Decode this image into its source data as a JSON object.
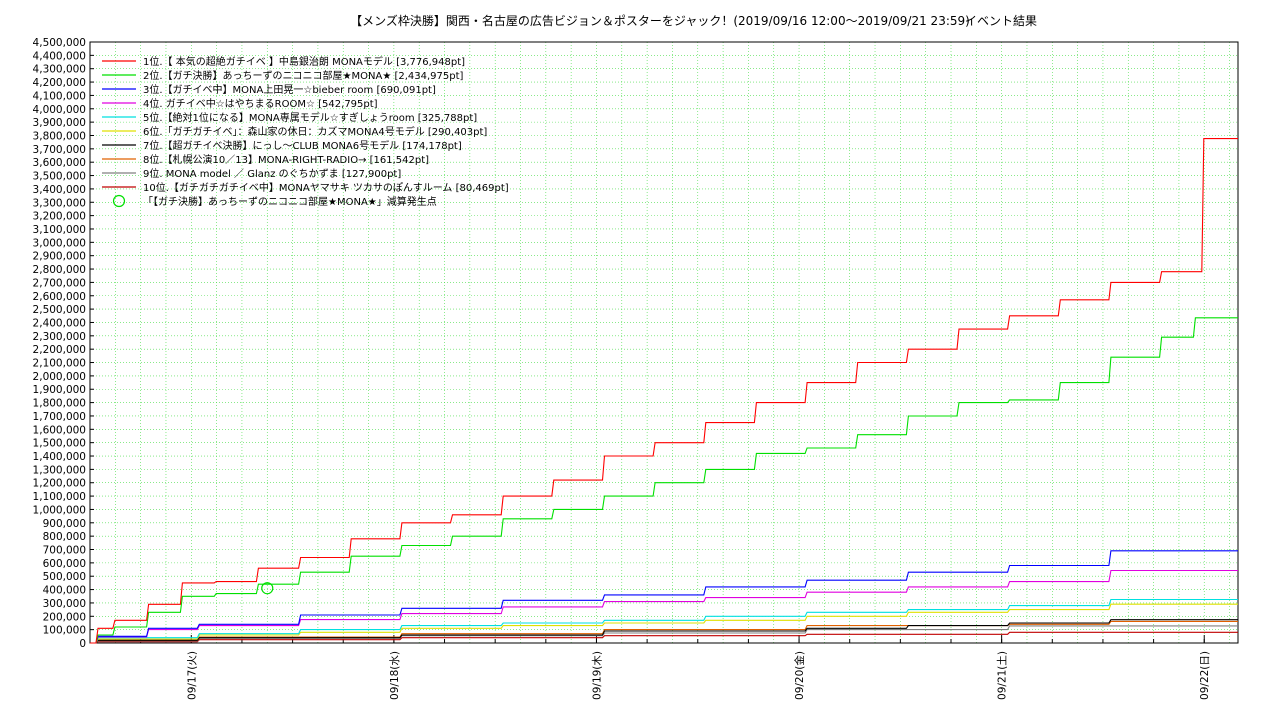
{
  "chart_data": {
    "type": "line",
    "title": "【メンズ枠決勝】関西・名古屋の広告ビジョン＆ポスターをジャック！(2019/09/16 12:00〜2019/09/21 23:59)",
    "subtitle": "イベント結果",
    "xlabel": "",
    "ylabel": "",
    "grid": true,
    "legend_position": "top-left",
    "xlim": [
      "2019-09-16 12:00",
      "2019-09-22 04:00"
    ],
    "ylim": [
      0,
      4500000
    ],
    "y_ticks": [
      "0",
      "100,000",
      "200,000",
      "300,000",
      "400,000",
      "500,000",
      "600,000",
      "700,000",
      "800,000",
      "900,000",
      "1,000,000",
      "1,100,000",
      "1,200,000",
      "1,300,000",
      "1,400,000",
      "1,500,000",
      "1,600,000",
      "1,700,000",
      "1,800,000",
      "1,900,000",
      "2,000,000",
      "2,100,000",
      "2,200,000",
      "2,300,000",
      "2,400,000",
      "2,500,000",
      "2,600,000",
      "2,700,000",
      "2,800,000",
      "2,900,000",
      "3,000,000",
      "3,100,000",
      "3,200,000",
      "3,300,000",
      "3,400,000",
      "3,500,000",
      "3,600,000",
      "3,700,000",
      "3,800,000",
      "3,900,000",
      "4,000,000",
      "4,100,000",
      "4,200,000",
      "4,300,000",
      "4,400,000",
      "4,500,000"
    ],
    "x_ticks": [
      {
        "label": "09/17(火)",
        "x": "2019-09-17 00:00"
      },
      {
        "label": "09/18(水)",
        "x": "2019-09-18 00:00"
      },
      {
        "label": "09/19(木)",
        "x": "2019-09-19 00:00"
      },
      {
        "label": "09/20(金)",
        "x": "2019-09-20 00:00"
      },
      {
        "label": "09/21(土)",
        "x": "2019-09-21 00:00"
      },
      {
        "label": "09/22(日)",
        "x": "2019-09-22 00:00"
      }
    ],
    "series": [
      {
        "name": "1位.【 本気の超絶ガチイベ 】中島銀治朗  MONAモデル [3,776,948pt]",
        "color": "#ff0000",
        "points": [
          [
            "2019-09-16 12:00",
            0
          ],
          [
            "2019-09-16 14:00",
            110000
          ],
          [
            "2019-09-16 18:00",
            170000
          ],
          [
            "2019-09-16 22:00",
            290000
          ],
          [
            "2019-09-17 02:00",
            450000
          ],
          [
            "2019-09-17 07:00",
            460000
          ],
          [
            "2019-09-17 12:00",
            560000
          ],
          [
            "2019-09-17 18:00",
            640000
          ],
          [
            "2019-09-18 00:00",
            780000
          ],
          [
            "2019-09-18 06:00",
            900000
          ],
          [
            "2019-09-18 12:00",
            960000
          ],
          [
            "2019-09-18 18:00",
            1100000
          ],
          [
            "2019-09-19 00:00",
            1220000
          ],
          [
            "2019-09-19 06:00",
            1400000
          ],
          [
            "2019-09-19 12:00",
            1500000
          ],
          [
            "2019-09-19 18:00",
            1650000
          ],
          [
            "2019-09-20 00:00",
            1800000
          ],
          [
            "2019-09-20 06:00",
            1950000
          ],
          [
            "2019-09-20 12:00",
            2100000
          ],
          [
            "2019-09-20 18:00",
            2200000
          ],
          [
            "2019-09-21 00:00",
            2350000
          ],
          [
            "2019-09-21 06:00",
            2450000
          ],
          [
            "2019-09-21 12:00",
            2570000
          ],
          [
            "2019-09-21 18:00",
            2700000
          ],
          [
            "2019-09-21 23:00",
            2780000
          ],
          [
            "2019-09-21 23:59",
            3776948
          ],
          [
            "2019-09-22 04:00",
            3776948
          ]
        ]
      },
      {
        "name": "2位.【ガチ決勝】あっちーずのニコニコ部屋★MONA★ [2,434,975pt]",
        "color": "#00e000",
        "points": [
          [
            "2019-09-16 12:00",
            0
          ],
          [
            "2019-09-16 14:00",
            60000
          ],
          [
            "2019-09-16 18:00",
            120000
          ],
          [
            "2019-09-16 22:00",
            230000
          ],
          [
            "2019-09-17 02:00",
            350000
          ],
          [
            "2019-09-17 07:00",
            370000
          ],
          [
            "2019-09-17 12:00",
            440000
          ],
          [
            "2019-09-17 18:00",
            530000
          ],
          [
            "2019-09-18 00:00",
            650000
          ],
          [
            "2019-09-18 06:00",
            730000
          ],
          [
            "2019-09-18 12:00",
            800000
          ],
          [
            "2019-09-18 18:00",
            930000
          ],
          [
            "2019-09-19 00:00",
            1000000
          ],
          [
            "2019-09-19 06:00",
            1100000
          ],
          [
            "2019-09-19 12:00",
            1200000
          ],
          [
            "2019-09-19 18:00",
            1300000
          ],
          [
            "2019-09-20 00:00",
            1420000
          ],
          [
            "2019-09-20 06:00",
            1460000
          ],
          [
            "2019-09-20 12:00",
            1560000
          ],
          [
            "2019-09-20 18:00",
            1700000
          ],
          [
            "2019-09-21 00:00",
            1800000
          ],
          [
            "2019-09-21 06:00",
            1820000
          ],
          [
            "2019-09-21 12:00",
            1950000
          ],
          [
            "2019-09-21 18:00",
            2140000
          ],
          [
            "2019-09-21 22:00",
            2290000
          ],
          [
            "2019-09-21 23:59",
            2434975
          ],
          [
            "2019-09-22 04:00",
            2434975
          ]
        ]
      },
      {
        "name": "3位.【ガチイベ中】MONA上田晃一☆bieber room [690,091pt]",
        "color": "#0000ff",
        "points": [
          [
            "2019-09-16 12:00",
            0
          ],
          [
            "2019-09-16 18:00",
            50000
          ],
          [
            "2019-09-17 00:00",
            110000
          ],
          [
            "2019-09-17 12:00",
            140000
          ],
          [
            "2019-09-18 00:00",
            210000
          ],
          [
            "2019-09-18 12:00",
            260000
          ],
          [
            "2019-09-19 00:00",
            320000
          ],
          [
            "2019-09-19 12:00",
            360000
          ],
          [
            "2019-09-20 00:00",
            420000
          ],
          [
            "2019-09-20 12:00",
            470000
          ],
          [
            "2019-09-21 00:00",
            530000
          ],
          [
            "2019-09-21 12:00",
            580000
          ],
          [
            "2019-09-21 23:59",
            690091
          ],
          [
            "2019-09-22 04:00",
            690091
          ]
        ]
      },
      {
        "name": "4位. ガチイベ中☆はやちまるROOM☆ [542,795pt]",
        "color": "#e000e0",
        "points": [
          [
            "2019-09-16 12:00",
            0
          ],
          [
            "2019-09-16 18:00",
            45000
          ],
          [
            "2019-09-17 00:00",
            100000
          ],
          [
            "2019-09-17 12:00",
            130000
          ],
          [
            "2019-09-18 00:00",
            175000
          ],
          [
            "2019-09-18 12:00",
            220000
          ],
          [
            "2019-09-19 00:00",
            270000
          ],
          [
            "2019-09-19 12:00",
            310000
          ],
          [
            "2019-09-20 00:00",
            340000
          ],
          [
            "2019-09-20 12:00",
            380000
          ],
          [
            "2019-09-21 00:00",
            420000
          ],
          [
            "2019-09-21 12:00",
            460000
          ],
          [
            "2019-09-21 23:59",
            542795
          ],
          [
            "2019-09-22 04:00",
            542795
          ]
        ]
      },
      {
        "name": "5位.【絶対1位になる】MONA専属モデル☆すぎしょうroom [325,788pt]",
        "color": "#00e0e0",
        "points": [
          [
            "2019-09-16 12:00",
            0
          ],
          [
            "2019-09-17 00:00",
            40000
          ],
          [
            "2019-09-17 12:00",
            70000
          ],
          [
            "2019-09-18 00:00",
            100000
          ],
          [
            "2019-09-18 12:00",
            130000
          ],
          [
            "2019-09-19 00:00",
            150000
          ],
          [
            "2019-09-19 12:00",
            170000
          ],
          [
            "2019-09-20 00:00",
            200000
          ],
          [
            "2019-09-20 12:00",
            230000
          ],
          [
            "2019-09-21 00:00",
            250000
          ],
          [
            "2019-09-21 12:00",
            280000
          ],
          [
            "2019-09-21 23:59",
            325788
          ],
          [
            "2019-09-22 04:00",
            325788
          ]
        ]
      },
      {
        "name": "6位.「ガチガチイベ」：森山家の休日：カズマMONA4号モデル [290,403pt]",
        "color": "#e0e000",
        "points": [
          [
            "2019-09-16 12:00",
            0
          ],
          [
            "2019-09-17 00:00",
            30000
          ],
          [
            "2019-09-17 12:00",
            60000
          ],
          [
            "2019-09-18 00:00",
            80000
          ],
          [
            "2019-09-18 12:00",
            110000
          ],
          [
            "2019-09-19 00:00",
            130000
          ],
          [
            "2019-09-19 12:00",
            150000
          ],
          [
            "2019-09-20 00:00",
            170000
          ],
          [
            "2019-09-20 12:00",
            200000
          ],
          [
            "2019-09-21 00:00",
            230000
          ],
          [
            "2019-09-21 12:00",
            250000
          ],
          [
            "2019-09-21 23:59",
            290403
          ],
          [
            "2019-09-22 04:00",
            290403
          ]
        ]
      },
      {
        "name": "7位.【超ガチイベ決勝】にっし〜CLUB MONA6号モデル [174,178pt]",
        "color": "#000000",
        "points": [
          [
            "2019-09-16 12:00",
            0
          ],
          [
            "2019-09-17 00:00",
            20000
          ],
          [
            "2019-09-18 00:00",
            40000
          ],
          [
            "2019-09-19 00:00",
            60000
          ],
          [
            "2019-09-20 00:00",
            90000
          ],
          [
            "2019-09-20 12:00",
            110000
          ],
          [
            "2019-09-21 00:00",
            130000
          ],
          [
            "2019-09-21 12:00",
            150000
          ],
          [
            "2019-09-21 23:59",
            174178
          ],
          [
            "2019-09-22 04:00",
            174178
          ]
        ]
      },
      {
        "name": "8位.【札幌公演10／13】MONA-RIGHT-RADIO→ [161,542pt]",
        "color": "#e06000",
        "points": [
          [
            "2019-09-16 12:00",
            0
          ],
          [
            "2019-09-17 00:00",
            20000
          ],
          [
            "2019-09-18 00:00",
            45000
          ],
          [
            "2019-09-19 00:00",
            70000
          ],
          [
            "2019-09-20 00:00",
            100000
          ],
          [
            "2019-09-21 00:00",
            130000
          ],
          [
            "2019-09-21 12:00",
            140000
          ],
          [
            "2019-09-21 23:59",
            161542
          ],
          [
            "2019-09-22 04:00",
            161542
          ]
        ]
      },
      {
        "name": "9位. MONA model ／ Glanz のぐちかずま [127,900pt]",
        "color": "#808080",
        "points": [
          [
            "2019-09-16 12:00",
            0
          ],
          [
            "2019-09-17 00:00",
            15000
          ],
          [
            "2019-09-18 00:00",
            35000
          ],
          [
            "2019-09-19 00:00",
            55000
          ],
          [
            "2019-09-20 00:00",
            75000
          ],
          [
            "2019-09-21 00:00",
            100000
          ],
          [
            "2019-09-21 23:59",
            127900
          ],
          [
            "2019-09-22 04:00",
            127900
          ]
        ]
      },
      {
        "name": "10位.【ガチガチガチイベ中】MONAヤマサキ ツカサのぽんすルーム [80,469pt]",
        "color": "#c00000",
        "points": [
          [
            "2019-09-16 12:00",
            0
          ],
          [
            "2019-09-17 00:00",
            10000
          ],
          [
            "2019-09-18 00:00",
            25000
          ],
          [
            "2019-09-19 00:00",
            40000
          ],
          [
            "2019-09-20 00:00",
            55000
          ],
          [
            "2019-09-21 00:00",
            65000
          ],
          [
            "2019-09-21 23:59",
            80469
          ],
          [
            "2019-09-22 04:00",
            80469
          ]
        ]
      }
    ],
    "markers": [
      {
        "name": "「【ガチ決勝】あっちーずのニコニコ部屋★MONA★」減算発生点",
        "color": "#00e000",
        "x": "2019-09-17 09:00",
        "y": 410000
      }
    ]
  }
}
